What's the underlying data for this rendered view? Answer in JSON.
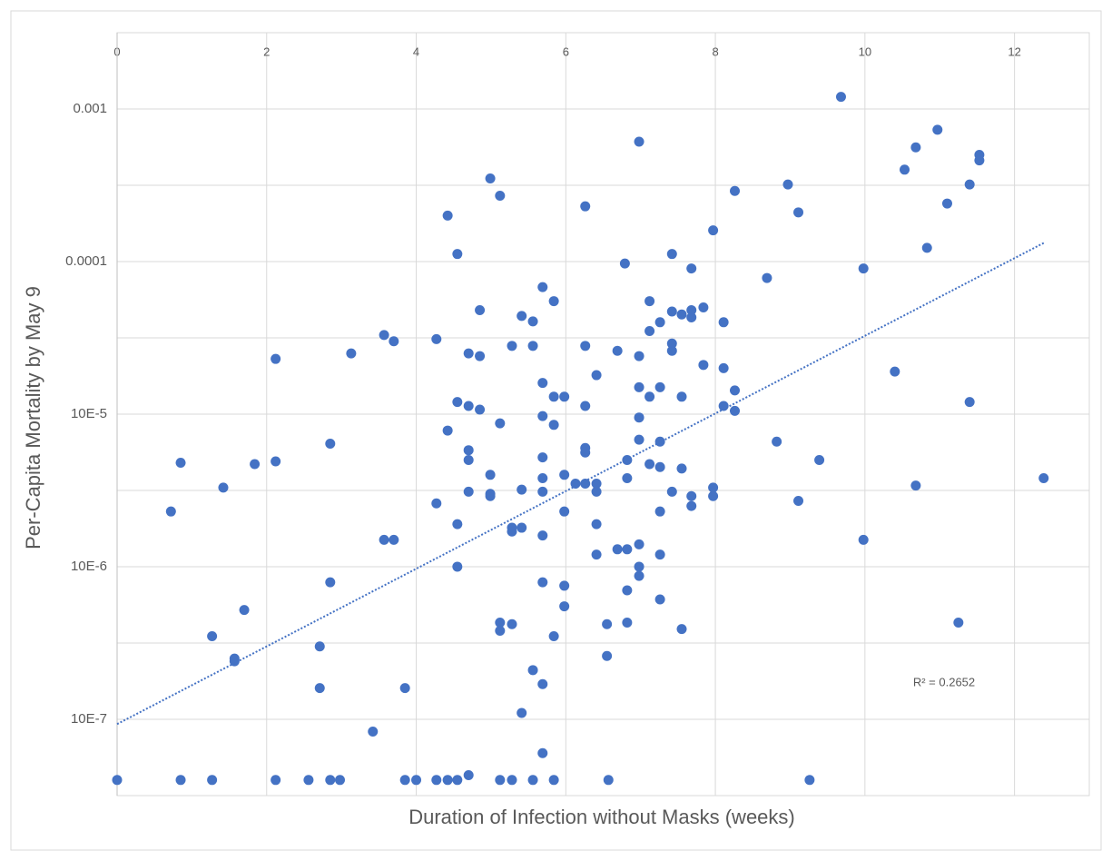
{
  "chart_data": {
    "type": "scatter",
    "x_label": "Duration of Infection without Masks (weeks)",
    "y_label": "Per-Capita Mortality by May 9",
    "annotation": "R² = 0.2652",
    "color": "#4472c4",
    "y_log": true,
    "grid": true,
    "xlim": [
      0,
      13
    ],
    "xticks": [
      0,
      2,
      4,
      6,
      8,
      10,
      12
    ],
    "ylim": [
      3.16e-08,
      0.00316
    ],
    "yticks": [
      0.001,
      0.0001,
      {
        "value": 1e-05,
        "label": "10E-5"
      },
      {
        "value": 1e-06,
        "label": "10E-6"
      },
      {
        "value": 1e-07,
        "label": "10E-7"
      }
    ],
    "y_minor_grid": [
      0.000316,
      3.16e-05,
      3.16e-06,
      3.16e-07
    ],
    "trendline": {
      "x": [
        0,
        12.4
      ],
      "y": [
        9.3e-08,
        0.000133
      ]
    },
    "x": [
      9.68,
      6.98,
      10.97,
      10.68,
      10.53,
      11.53,
      11.53,
      4.99,
      8.97,
      11.4,
      8.26,
      5.12,
      6.26,
      11.1,
      4.42,
      9.11,
      10.83,
      7.97,
      4.55,
      7.42,
      6.79,
      7.68,
      9.98,
      8.69,
      5.69,
      5.84,
      7.12,
      4.85,
      7.84,
      7.42,
      7.68,
      7.55,
      7.68,
      5.41,
      5.56,
      7.26,
      8.11,
      7.12,
      3.57,
      3.7,
      4.27,
      7.42,
      6.26,
      5.28,
      5.56,
      7.42,
      3.13,
      4.7,
      6.69,
      4.85,
      6.98,
      2.12,
      7.84,
      8.11,
      10.4,
      6.41,
      5.69,
      6.98,
      7.26,
      8.26,
      7.55,
      5.84,
      5.98,
      7.12,
      4.55,
      11.4,
      4.7,
      4.85,
      6.26,
      8.11,
      8.26,
      5.69,
      6.98,
      5.12,
      5.84,
      4.42,
      6.98,
      7.26,
      8.82,
      2.85,
      6.26,
      4.7,
      6.26,
      5.69,
      6.82,
      4.7,
      9.39,
      0.85,
      1.84,
      2.12,
      7.12,
      7.26,
      7.55,
      4.99,
      5.98,
      5.69,
      6.82,
      12.39,
      6.13,
      6.26,
      6.41,
      1.42,
      7.97,
      10.68,
      5.41,
      6.41,
      4.7,
      5.69,
      7.42,
      4.99,
      4.99,
      7.97,
      7.68,
      4.27,
      9.11,
      7.68,
      5.98,
      7.26,
      0.72,
      4.55,
      6.41,
      5.41,
      5.28,
      5.28,
      5.69,
      3.57,
      3.7,
      9.98,
      6.98,
      6.69,
      6.82,
      6.41,
      7.26,
      4.55,
      6.98,
      6.98,
      5.69,
      2.85,
      5.98,
      6.82,
      7.26,
      5.98,
      1.7,
      5.12,
      5.28,
      6.55,
      6.82,
      11.25,
      5.12,
      7.55,
      1.27,
      5.84,
      2.71,
      6.55,
      1.57,
      1.57,
      5.56,
      5.69,
      3.85,
      2.71,
      5.41,
      3.42,
      5.69,
      0,
      0.85,
      1.27,
      2.12,
      2.56,
      2.85,
      2.98,
      3.85,
      4.0,
      4.27,
      4.42,
      4.55,
      5.12,
      5.28,
      5.56,
      5.84,
      6.57,
      9.26,
      4.7
    ],
    "values": [
      0.0012,
      0.00061,
      0.00073,
      0.00056,
      0.0004,
      0.0005,
      0.00046,
      0.00035,
      0.00032,
      0.00032,
      0.00029,
      0.00027,
      0.00023,
      0.00024,
      0.0002,
      0.00021,
      0.000123,
      0.00016,
      0.000112,
      0.000112,
      9.7e-05,
      9e-05,
      9e-05,
      7.8e-05,
      6.8e-05,
      5.5e-05,
      5.5e-05,
      4.8e-05,
      5e-05,
      4.7e-05,
      4.8e-05,
      4.5e-05,
      4.3e-05,
      4.4e-05,
      4.05e-05,
      4e-05,
      4e-05,
      3.5e-05,
      3.3e-05,
      3e-05,
      3.1e-05,
      2.9e-05,
      2.8e-05,
      2.8e-05,
      2.8e-05,
      2.6e-05,
      2.5e-05,
      2.5e-05,
      2.6e-05,
      2.4e-05,
      2.4e-05,
      2.3e-05,
      2.1e-05,
      2e-05,
      1.9e-05,
      1.8e-05,
      1.6e-05,
      1.5e-05,
      1.5e-05,
      1.43e-05,
      1.3e-05,
      1.3e-05,
      1.3e-05,
      1.3e-05,
      1.2e-05,
      1.2e-05,
      1.13e-05,
      1.07e-05,
      1.13e-05,
      1.13e-05,
      1.05e-05,
      9.7e-06,
      9.5e-06,
      8.7e-06,
      8.5e-06,
      7.8e-06,
      6.8e-06,
      6.6e-06,
      6.6e-06,
      6.4e-06,
      6e-06,
      5.8e-06,
      5.6e-06,
      5.2e-06,
      5e-06,
      5e-06,
      5e-06,
      4.8e-06,
      4.7e-06,
      4.9e-06,
      4.7e-06,
      4.5e-06,
      4.4e-06,
      4e-06,
      4e-06,
      3.8e-06,
      3.8e-06,
      3.8e-06,
      3.5e-06,
      3.5e-06,
      3.5e-06,
      3.3e-06,
      3.3e-06,
      3.4e-06,
      3.2e-06,
      3.1e-06,
      3.1e-06,
      3.1e-06,
      3.1e-06,
      3e-06,
      2.9e-06,
      2.9e-06,
      2.9e-06,
      2.6e-06,
      2.7e-06,
      2.5e-06,
      2.3e-06,
      2.3e-06,
      2.3e-06,
      1.9e-06,
      1.9e-06,
      1.8e-06,
      1.8e-06,
      1.7e-06,
      1.6e-06,
      1.5e-06,
      1.5e-06,
      1.5e-06,
      1.4e-06,
      1.3e-06,
      1.3e-06,
      1.2e-06,
      1.2e-06,
      1e-06,
      1e-06,
      8.7e-07,
      7.9e-07,
      7.9e-07,
      7.5e-07,
      7e-07,
      6.1e-07,
      5.5e-07,
      5.2e-07,
      4.3e-07,
      4.2e-07,
      4.2e-07,
      4.3e-07,
      4.3e-07,
      3.8e-07,
      3.9e-07,
      3.5e-07,
      3.5e-07,
      3e-07,
      2.6e-07,
      2.5e-07,
      2.4e-07,
      2.1e-07,
      1.7e-07,
      1.6e-07,
      1.6e-07,
      1.1e-07,
      8.3e-08,
      6e-08,
      4e-08,
      4e-08,
      4e-08,
      4e-08,
      4e-08,
      4e-08,
      4e-08,
      4e-08,
      4e-08,
      4e-08,
      4e-08,
      4e-08,
      4e-08,
      4e-08,
      4e-08,
      4e-08,
      4e-08,
      4e-08,
      4.3e-08
    ]
  }
}
